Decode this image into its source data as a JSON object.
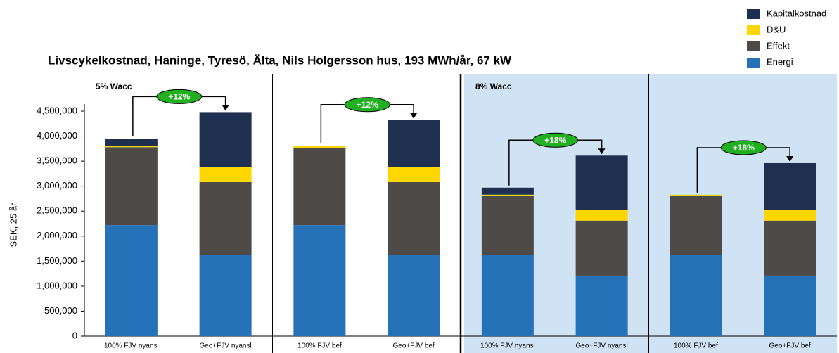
{
  "chart_data": {
    "type": "stacked_bar",
    "title": "Livscykelkostnad, Haninge, Tyresö, Älta, Nils Holgersson hus, 193 MWh/år, 67 kW",
    "ylabel": "SEK, 25 år",
    "categories": [
      "100% FJV nyansl",
      "Geo+FJV nyansl",
      "100% FJV bef",
      "Geo+FJV bef",
      "100% FJV nyansl",
      "Geo+FJV nyansl",
      "100% FJV bef",
      "Geo+FJV bef"
    ],
    "series": [
      {
        "name": "Energi",
        "color": "#2672b9",
        "values": [
          2220000,
          1620000,
          2220000,
          1620000,
          1630000,
          1210000,
          1630000,
          1210000
        ]
      },
      {
        "name": "Effekt",
        "color": "#4e4a47",
        "values": [
          1560000,
          1460000,
          1550000,
          1460000,
          1170000,
          1100000,
          1170000,
          1100000
        ]
      },
      {
        "name": "D&U",
        "color": "#ffd700",
        "values": [
          30000,
          300000,
          40000,
          300000,
          30000,
          220000,
          30000,
          220000
        ]
      },
      {
        "name": "Kapitalkostnad",
        "color": "#1f2f4f",
        "values": [
          140000,
          1100000,
          0,
          940000,
          140000,
          1080000,
          0,
          930000
        ]
      }
    ],
    "ylim": [
      0,
      4500000
    ],
    "yticks": [
      0,
      {
        "value": 500000,
        "label": "500,000"
      },
      {
        "value": 1000000,
        "label": "1,000,000"
      },
      {
        "value": 1500000,
        "label": "1,500,000"
      },
      {
        "value": 2000000,
        "label": "2,000,000"
      },
      {
        "value": 2500000,
        "label": "2,500,000"
      },
      {
        "value": 3000000,
        "label": "3,000,000"
      },
      {
        "value": 3500000,
        "label": "3,500,000"
      },
      {
        "value": 4000000,
        "label": "4,000,000"
      },
      {
        "value": 4500000,
        "label": "4,500,000"
      }
    ],
    "legend": "top-right",
    "annotations": {
      "panels": [
        "5% Wacc",
        "8% Wacc"
      ],
      "changes": [
        "+12%",
        "+12%",
        "+18%",
        "+18%"
      ]
    }
  }
}
